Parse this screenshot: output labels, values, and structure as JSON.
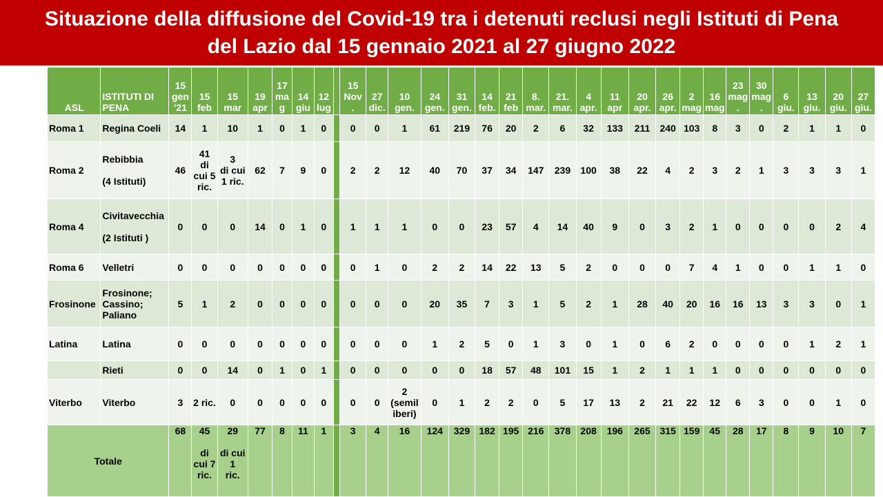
{
  "title": "Situazione della diffusione del Covid-19 tra i detenuti reclusi negli Istituti di Pena\ndel Lazio dal 15 gennaio 2021 al 27 giugno 2022",
  "headers": {
    "asl": "ASL",
    "istituti": "ISTITUTI DI PENA",
    "dates": [
      "15\ngen\n'21",
      "15\nfeb",
      "15\nmar",
      "19\napr",
      "17\nma\ng",
      "14\ngiu",
      "12\nlug",
      "",
      "15\nNov\n.",
      "27\ndic.",
      "10\ngen.",
      "24\ngen.",
      "31\ngen.",
      "14\nfeb.",
      "21\nfeb",
      "8.\nmar.",
      "21.\nmar.",
      "4\napr.",
      "11\napr",
      "20\napr.",
      "26\napr.",
      "2\nmag",
      "16\nmag",
      "23\nmag\n.",
      "30\nmag\n.",
      "6\ngiu.",
      "13\ngiu.",
      "20\ngiu.",
      "27\ngiu."
    ]
  },
  "rows": [
    {
      "asl": "Roma 1",
      "istituto": "Regina Coeli",
      "values": [
        "14",
        "1",
        "10",
        "1",
        "0",
        "1",
        "0",
        "",
        "0",
        "0",
        "1",
        "61",
        "219",
        "76",
        "20",
        "2",
        "6",
        "32",
        "133",
        "211",
        "240",
        "103",
        "8",
        "3",
        "0",
        "2",
        "1",
        "1",
        "0"
      ]
    },
    {
      "asl": "Roma 2",
      "istituto": "Rebibbia\n\n(4 Istituti)",
      "values": [
        "46",
        "41\ndi\ncui 5\nric.",
        "3\ndi cui\n1 ric.",
        "62",
        "7",
        "9",
        "0",
        "",
        "2",
        "2",
        "12",
        "40",
        "70",
        "37",
        "34",
        "147",
        "239",
        "100",
        "38",
        "22",
        "4",
        "2",
        "3",
        "2",
        "1",
        "3",
        "3",
        "3",
        "1"
      ]
    },
    {
      "asl": "Roma 4",
      "istituto": "Civitavecchia\n\n(2 Istituti )",
      "values": [
        "0",
        "0",
        "0",
        "14",
        "0",
        "1",
        "0",
        "",
        "1",
        "1",
        "1",
        "0",
        "0",
        "23",
        "57",
        "4",
        "14",
        "40",
        "9",
        "0",
        "3",
        "2",
        "1",
        "0",
        "0",
        "0",
        "0",
        "2",
        "4"
      ]
    },
    {
      "asl": "Roma 6",
      "istituto": "Velletri",
      "values": [
        "0",
        "0",
        "0",
        "0",
        "0",
        "0",
        "0",
        "",
        "0",
        "1",
        "0",
        "2",
        "2",
        "14",
        "22",
        "13",
        "5",
        "2",
        "0",
        "0",
        "0",
        "7",
        "4",
        "1",
        "0",
        "0",
        "1",
        "1",
        "0"
      ]
    },
    {
      "asl": "Frosinone",
      "istituto": "Frosinone;\nCassino;\nPaliano",
      "values": [
        "5",
        "1",
        "2",
        "0",
        "0",
        "0",
        "0",
        "",
        "0",
        "0",
        "0",
        "20",
        "35",
        "7",
        "3",
        "1",
        "5",
        "2",
        "1",
        "28",
        "40",
        "20",
        "16",
        "16",
        "13",
        "3",
        "3",
        "0",
        "1"
      ]
    },
    {
      "asl": "Latina",
      "istituto": "Latina",
      "values": [
        "0",
        "0",
        "0",
        "0",
        "0",
        "0",
        "0",
        "",
        "0",
        "0",
        "0",
        "1",
        "2",
        "5",
        "0",
        "1",
        "3",
        "0",
        "1",
        "0",
        "6",
        "2",
        "0",
        "0",
        "0",
        "0",
        "1",
        "2",
        "1"
      ]
    },
    {
      "asl": "",
      "istituto": "Rieti",
      "values": [
        "0",
        "0",
        "14",
        "0",
        "1",
        "0",
        "1",
        "",
        "0",
        "0",
        "0",
        "0",
        "0",
        "18",
        "57",
        "48",
        "101",
        "15",
        "1",
        "2",
        "1",
        "1",
        "1",
        "0",
        "0",
        "0",
        "0",
        "0",
        "0"
      ]
    },
    {
      "asl": "Viterbo",
      "istituto": "Viterbo",
      "values": [
        "3",
        "2 ric.",
        "0",
        "0",
        "0",
        "0",
        "0",
        "",
        "0",
        "0",
        "2\n(semil\niberi)",
        "0",
        "1",
        "2",
        "2",
        "0",
        "5",
        "17",
        "13",
        "2",
        "21",
        "22",
        "12",
        "6",
        "3",
        "0",
        "0",
        "1",
        "0"
      ]
    }
  ],
  "total": {
    "label": "Totale",
    "values": [
      "68",
      "45\n\ndi\ncui 7\nric.",
      "29\n\ndi cui\n1\nric.",
      "77",
      "8",
      "11",
      "1",
      "",
      "3",
      "4",
      "16",
      "124",
      "329",
      "182",
      "195",
      "216",
      "378",
      "208",
      "196",
      "265",
      "315",
      "159",
      "45",
      "28",
      "17",
      "8",
      "9",
      "10",
      "7"
    ]
  },
  "colors": {
    "title_bg": "#c00000",
    "header_bg": "#70ad47",
    "row_dark": "#dde9d6",
    "row_light": "#eef4eb",
    "total_bg": "#a8d08d"
  }
}
